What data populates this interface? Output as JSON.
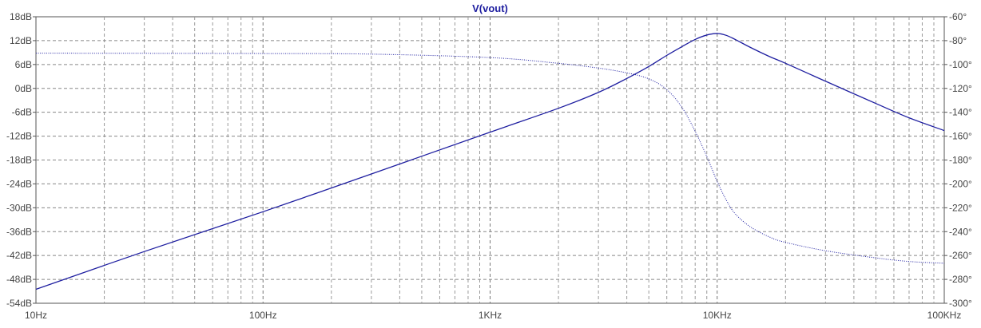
{
  "chart_data": {
    "type": "line",
    "title": "V(vout)",
    "x_scale": "log",
    "xlim": [
      10,
      100000
    ],
    "x_ticks": [
      10,
      100,
      1000,
      10000,
      100000
    ],
    "x_tick_labels": [
      "10Hz",
      "100Hz",
      "1KHz",
      "10KHz",
      "100KHz"
    ],
    "y_left": {
      "unit": "dB",
      "lim": [
        -54,
        18
      ],
      "ticks": [
        18,
        12,
        6,
        0,
        -6,
        -12,
        -18,
        -24,
        -30,
        -36,
        -42,
        -48,
        -54
      ],
      "tick_labels": [
        "18dB",
        "12dB",
        "6dB",
        "0dB",
        "-6dB",
        "-12dB",
        "-18dB",
        "-24dB",
        "-30dB",
        "-36dB",
        "-42dB",
        "-48dB",
        "-54dB"
      ]
    },
    "y_right": {
      "unit": "deg",
      "lim": [
        -300,
        -60
      ],
      "ticks": [
        -60,
        -80,
        -100,
        -120,
        -140,
        -160,
        -180,
        -200,
        -220,
        -240,
        -260,
        -280,
        -300
      ],
      "tick_labels": [
        "-60°",
        "-80°",
        "-100°",
        "-120°",
        "-140°",
        "-160°",
        "-180°",
        "-200°",
        "-220°",
        "-240°",
        "-260°",
        "-280°",
        "-300°"
      ]
    },
    "grid": true,
    "series": [
      {
        "kind": "magnitude",
        "axis": "left",
        "style": "solid",
        "color": "#1e1ea0",
        "x": [
          10,
          30,
          100,
          300,
          1000,
          2000,
          3000,
          4000,
          5000,
          6000,
          7000,
          8000,
          9000,
          10000,
          11000,
          12000,
          14000,
          17000,
          20000,
          30000,
          50000,
          70000,
          100000
        ],
        "y": [
          -50.5,
          -41,
          -31,
          -21.5,
          -11,
          -5,
          -1,
          2.5,
          5.5,
          8.3,
          10.5,
          12.3,
          13.4,
          13.8,
          13.3,
          12.3,
          10.3,
          8,
          6.3,
          1.8,
          -3.8,
          -7.4,
          -10.6
        ]
      },
      {
        "kind": "phase",
        "axis": "right",
        "style": "dotted",
        "color": "#1e1ea0",
        "x": [
          10,
          100,
          300,
          1000,
          2000,
          3000,
          4000,
          5000,
          6000,
          7000,
          8000,
          9000,
          10000,
          11000,
          12000,
          14000,
          17000,
          20000,
          30000,
          50000,
          70000,
          100000
        ],
        "y": [
          -90.5,
          -90.8,
          -91.3,
          -94.2,
          -99,
          -103,
          -107,
          -112,
          -121,
          -136,
          -156,
          -177,
          -198,
          -214,
          -225,
          -236,
          -244.5,
          -249,
          -256,
          -262,
          -265,
          -266.5
        ]
      }
    ]
  }
}
